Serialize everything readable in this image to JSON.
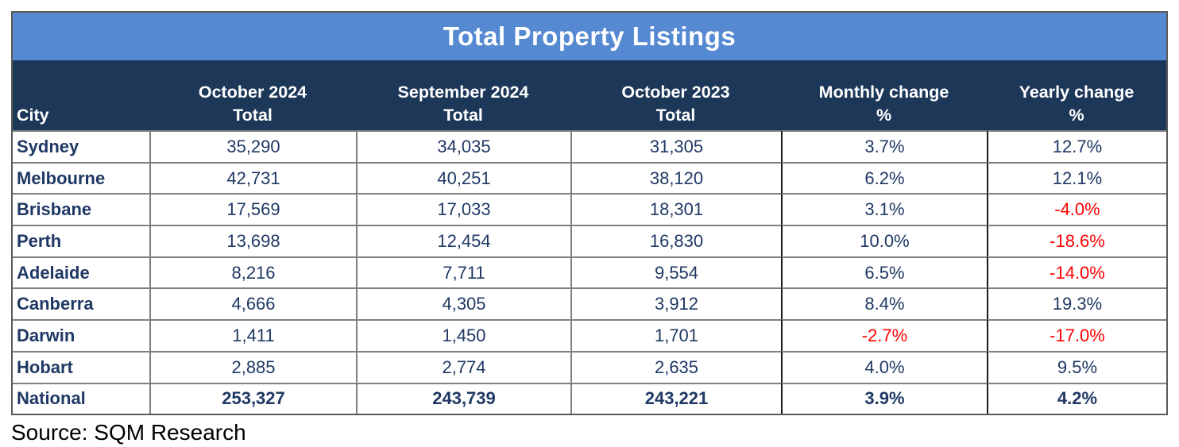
{
  "title": "Total Property Listings",
  "source": "Source: SQM Research",
  "colors": {
    "title_bg": "#5589D2",
    "header_bg": "#1D3759",
    "text_navy": "#1F3864",
    "negative_red": "#FE0000",
    "grid_gray": "#808080",
    "grid_black": "#1A1A1A",
    "outer_border": "#595959",
    "source_text": "#000000"
  },
  "table": {
    "columns": [
      {
        "key": "city",
        "lines": [
          "City"
        ]
      },
      {
        "key": "october-2024-total",
        "lines": [
          "October 2024",
          "Total"
        ]
      },
      {
        "key": "september-2024-total",
        "lines": [
          "September 2024",
          "Total"
        ]
      },
      {
        "key": "october-2023-total",
        "lines": [
          "October 2023",
          "Total"
        ]
      },
      {
        "key": "monthly-change-pct",
        "lines": [
          "Monthly change",
          "%"
        ]
      },
      {
        "key": "yearly-change-pct",
        "lines": [
          "Yearly change",
          "%"
        ]
      }
    ],
    "rows": [
      {
        "city": "Sydney",
        "values": [
          "35,290",
          "34,035",
          "31,305",
          "3.7%",
          "12.7%"
        ],
        "bold": false
      },
      {
        "city": "Melbourne",
        "values": [
          "42,731",
          "40,251",
          "38,120",
          "6.2%",
          "12.1%"
        ],
        "bold": false
      },
      {
        "city": "Brisbane",
        "values": [
          "17,569",
          "17,033",
          "18,301",
          "3.1%",
          "-4.0%"
        ],
        "bold": false
      },
      {
        "city": "Perth",
        "values": [
          "13,698",
          "12,454",
          "16,830",
          "10.0%",
          "-18.6%"
        ],
        "bold": false
      },
      {
        "city": "Adelaide",
        "values": [
          "8,216",
          "7,711",
          "9,554",
          "6.5%",
          "-14.0%"
        ],
        "bold": false
      },
      {
        "city": "Canberra",
        "values": [
          "4,666",
          "4,305",
          "3,912",
          "8.4%",
          "19.3%"
        ],
        "bold": false
      },
      {
        "city": "Darwin",
        "values": [
          "1,411",
          "1,450",
          "1,701",
          "-2.7%",
          "-17.0%"
        ],
        "bold": false
      },
      {
        "city": "Hobart",
        "values": [
          "2,885",
          "2,774",
          "2,635",
          "4.0%",
          "9.5%"
        ],
        "bold": false
      },
      {
        "city": "National",
        "values": [
          "253,327",
          "243,739",
          "243,221",
          "3.9%",
          "4.2%"
        ],
        "bold": true
      }
    ]
  },
  "chart_data": {
    "type": "table",
    "title": "Total Property Listings",
    "source": "Source: SQM Research",
    "columns": [
      "City",
      "October 2024 Total",
      "September 2024 Total",
      "October 2023 Total",
      "Monthly change %",
      "Yearly change %"
    ],
    "rows": [
      [
        "Sydney",
        35290,
        34035,
        31305,
        3.7,
        12.7
      ],
      [
        "Melbourne",
        42731,
        40251,
        38120,
        6.2,
        12.1
      ],
      [
        "Brisbane",
        17569,
        17033,
        18301,
        3.1,
        -4.0
      ],
      [
        "Perth",
        13698,
        12454,
        16830,
        10.0,
        -18.6
      ],
      [
        "Adelaide",
        8216,
        7711,
        9554,
        6.5,
        -14.0
      ],
      [
        "Canberra",
        4666,
        4305,
        3912,
        8.4,
        19.3
      ],
      [
        "Darwin",
        1411,
        1450,
        1701,
        -2.7,
        -17.0
      ],
      [
        "Hobart",
        2885,
        2774,
        2635,
        4.0,
        9.5
      ],
      [
        "National",
        253327,
        243739,
        243221,
        3.9,
        4.2
      ]
    ],
    "notes": "Monthly and Yearly change values are percentages; negative values rendered in red, National totals row rendered bold"
  }
}
